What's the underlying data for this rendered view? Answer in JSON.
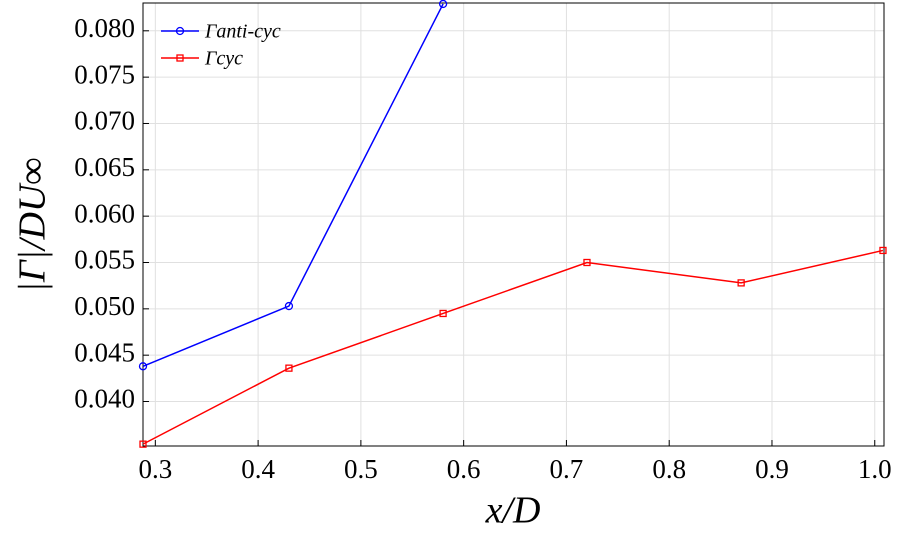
{
  "chart_data": {
    "type": "line",
    "xlabel": "x/D",
    "ylabel": "|Γ|/DU∞",
    "x": [
      0.288,
      0.43,
      0.58,
      0.72,
      0.87,
      1.008
    ],
    "series": [
      {
        "name": "Γanti-cyc",
        "color": "#0000ff",
        "marker": "circle",
        "values": [
          0.0438,
          0.0503,
          0.0829,
          null,
          null,
          null
        ]
      },
      {
        "name": "Γcyc",
        "color": "#ff0000",
        "marker": "square",
        "values": [
          0.0354,
          0.0436,
          0.0495,
          0.055,
          0.0528,
          0.0563
        ]
      }
    ],
    "xlim": [
      0.288,
      1.009
    ],
    "ylim": [
      0.0352,
      0.083
    ],
    "xticks": [
      0.3,
      0.4,
      0.5,
      0.6,
      0.7,
      0.8,
      0.9,
      {
        "value": 1,
        "label": "1.0"
      }
    ],
    "yticks": [
      {
        "value": 0.04,
        "label": "0.040"
      },
      {
        "value": 0.045,
        "label": "0.045"
      },
      {
        "value": 0.05,
        "label": "0.050"
      },
      {
        "value": 0.055,
        "label": "0.055"
      },
      {
        "value": 0.06,
        "label": "0.060"
      },
      {
        "value": 0.065,
        "label": "0.065"
      },
      {
        "value": 0.07,
        "label": "0.070"
      },
      {
        "value": 0.075,
        "label": "0.075"
      },
      {
        "value": 0.08,
        "label": "0.080"
      }
    ],
    "grid": true,
    "legend": "upper left"
  }
}
